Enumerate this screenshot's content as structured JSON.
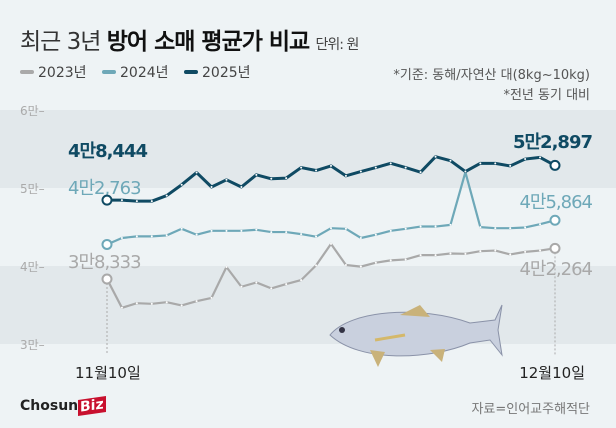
{
  "title": {
    "light": "최근 3년 ",
    "bold": "방어 소매 평균가 비교",
    "unit": "단위: 원"
  },
  "legend": [
    {
      "label": "2023년",
      "color": "#a9a9a9"
    },
    {
      "label": "2024년",
      "color": "#6ea8b8"
    },
    {
      "label": "2025년",
      "color": "#0f4a63"
    }
  ],
  "notes": [
    "*기준: 동해/자연산 대(8kg~10kg)",
    "*전년 동기 대비"
  ],
  "source": "자료=인어교주해적단",
  "logo": {
    "a": "Chosun",
    "b": "Biz"
  },
  "chart_data": {
    "type": "line",
    "title": "최근 3년 방어 소매 평균가 비교",
    "x_labels": [
      "11월10일",
      "12월10일"
    ],
    "y_ticks": [
      {
        "v": 60000,
        "label": "6만"
      },
      {
        "v": 50000,
        "label": "5만"
      },
      {
        "v": 40000,
        "label": "4만"
      },
      {
        "v": 30000,
        "label": "3만"
      }
    ],
    "ylim": [
      30000,
      60000
    ],
    "series": [
      {
        "name": "2023년",
        "color": "#a9a9a9",
        "start_label": "3만8,333",
        "end_label": "4만2,264",
        "values": [
          38333,
          34640,
          35230,
          35150,
          35360,
          34940,
          35490,
          35910,
          39870,
          37340,
          37890,
          37130,
          37680,
          38190,
          40080,
          42830,
          40130,
          39920,
          40420,
          40720,
          40840,
          41390,
          41390,
          41600,
          41560,
          41900,
          41980,
          41480,
          41810,
          41980,
          42264
        ]
      },
      {
        "name": "2024년",
        "color": "#6ea8b8",
        "start_label": "4만2,763",
        "end_label": "4만5,864",
        "values": [
          42763,
          43590,
          43800,
          43800,
          43920,
          44770,
          44010,
          44510,
          44510,
          44510,
          44640,
          44350,
          44350,
          44090,
          43760,
          44850,
          44770,
          43590,
          44010,
          44510,
          44770,
          45060,
          45060,
          45270,
          52030,
          44980,
          44850,
          44850,
          44940,
          45360,
          45864
        ]
      },
      {
        "name": "2025년",
        "color": "#0f4a63",
        "start_label": "4만8,444",
        "end_label": "5만2,897",
        "values": [
          48444,
          48440,
          48310,
          48310,
          49030,
          50420,
          51980,
          50130,
          51050,
          50130,
          51690,
          51180,
          51270,
          52620,
          52240,
          52830,
          51560,
          52110,
          52620,
          53160,
          52620,
          52030,
          54010,
          53500,
          52110,
          53160,
          53160,
          52830,
          53710,
          53920,
          52897
        ]
      }
    ]
  }
}
